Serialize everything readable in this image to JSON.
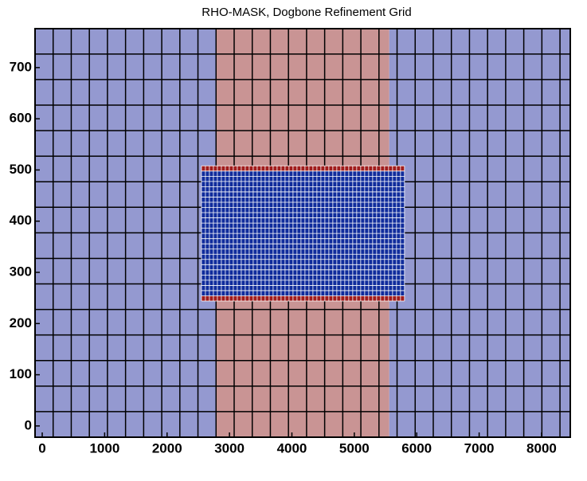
{
  "chart_data": {
    "type": "grid",
    "title": "RHO-MASK, Dogbone Refinement Grid",
    "xlim": [
      -115,
      8460
    ],
    "ylim": [
      -22,
      776
    ],
    "xticks": [
      0,
      1000,
      2000,
      3000,
      4000,
      5000,
      6000,
      7000,
      8000
    ],
    "yticks": [
      0,
      100,
      200,
      300,
      400,
      500,
      600,
      700
    ],
    "regions": [
      {
        "x": [
          -115,
          2780
        ],
        "y": [
          -22,
          776
        ],
        "color": "#9499d0"
      },
      {
        "x": [
          2780,
          5560
        ],
        "y": [
          -22,
          776
        ],
        "color": "#c99494"
      },
      {
        "x": [
          5560,
          8460
        ],
        "y": [
          -22,
          776
        ],
        "color": "#9499d0"
      },
      {
        "x": [
          2551,
          5804
        ],
        "y": [
          244,
          508
        ],
        "color": "#102c9c"
      },
      {
        "x": [
          2551,
          5804
        ],
        "y": [
          244,
          254
        ],
        "color": "#a01c1c"
      },
      {
        "x": [
          2551,
          5804
        ],
        "y": [
          498,
          508
        ],
        "color": "#a01c1c"
      }
    ],
    "coarse_grid": {
      "x0": -115,
      "dx": 290,
      "y0": -22,
      "dy": 49.9,
      "color": "#000000"
    },
    "fine_grid": {
      "x": [
        2551,
        5804
      ],
      "y": [
        244,
        508
      ],
      "nx": 51,
      "ny": 26,
      "color": "#ffffff"
    }
  }
}
